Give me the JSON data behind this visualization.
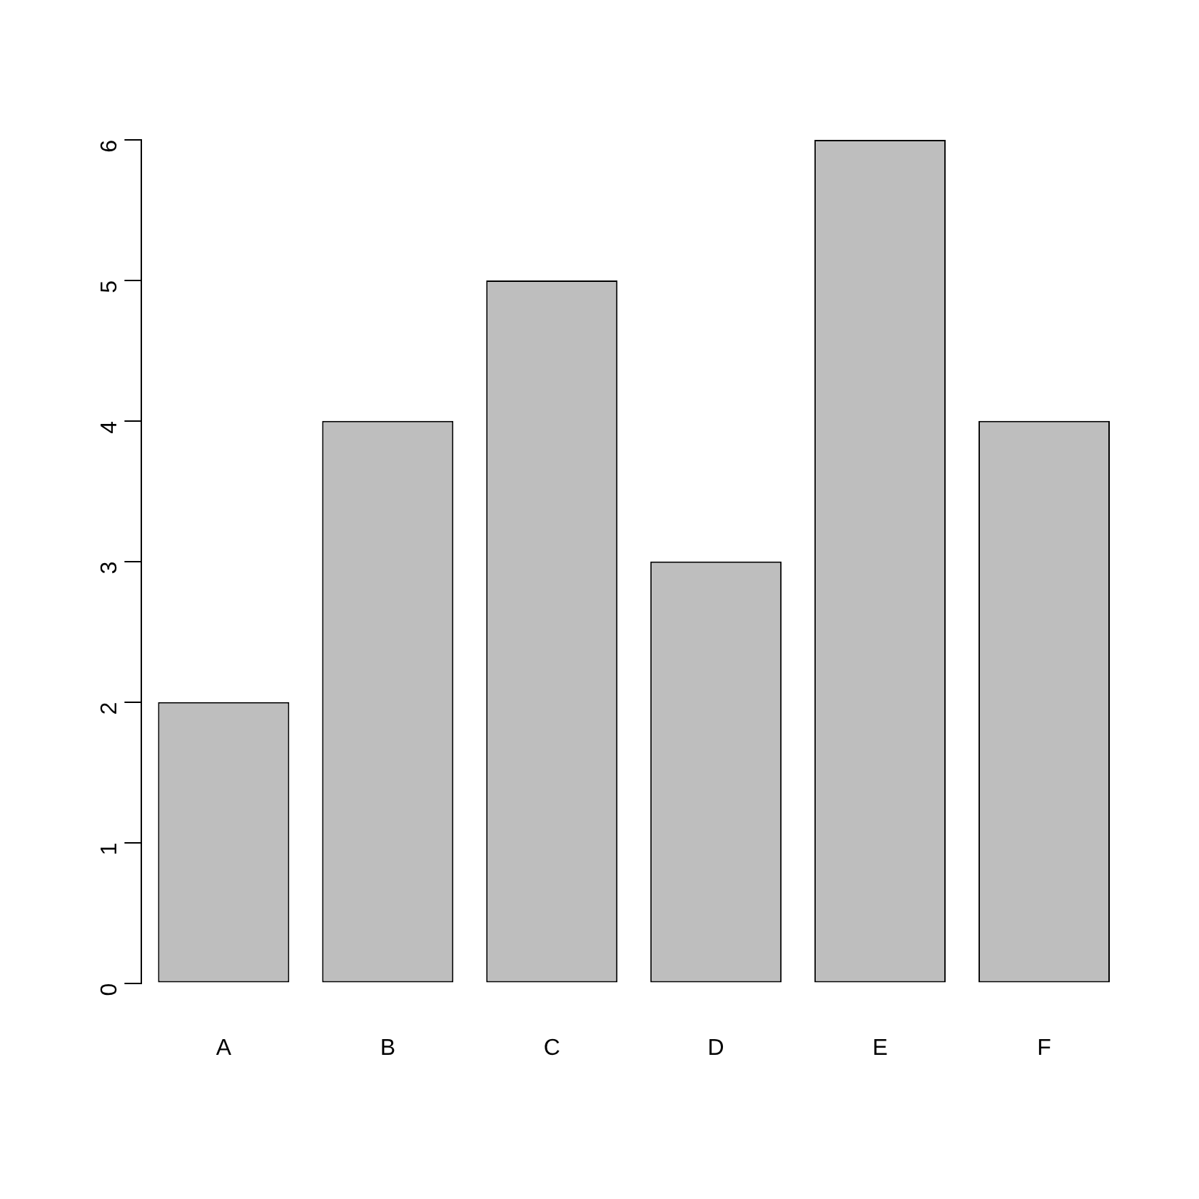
{
  "chart_data": {
    "type": "bar",
    "categories": [
      "A",
      "B",
      "C",
      "D",
      "E",
      "F"
    ],
    "values": [
      2,
      4,
      5,
      3,
      6,
      4
    ],
    "color": "#bebebe",
    "ylim": [
      0,
      6
    ],
    "yticks": [
      0,
      1,
      2,
      3,
      4,
      5,
      6
    ],
    "grid": false,
    "legend": false
  }
}
